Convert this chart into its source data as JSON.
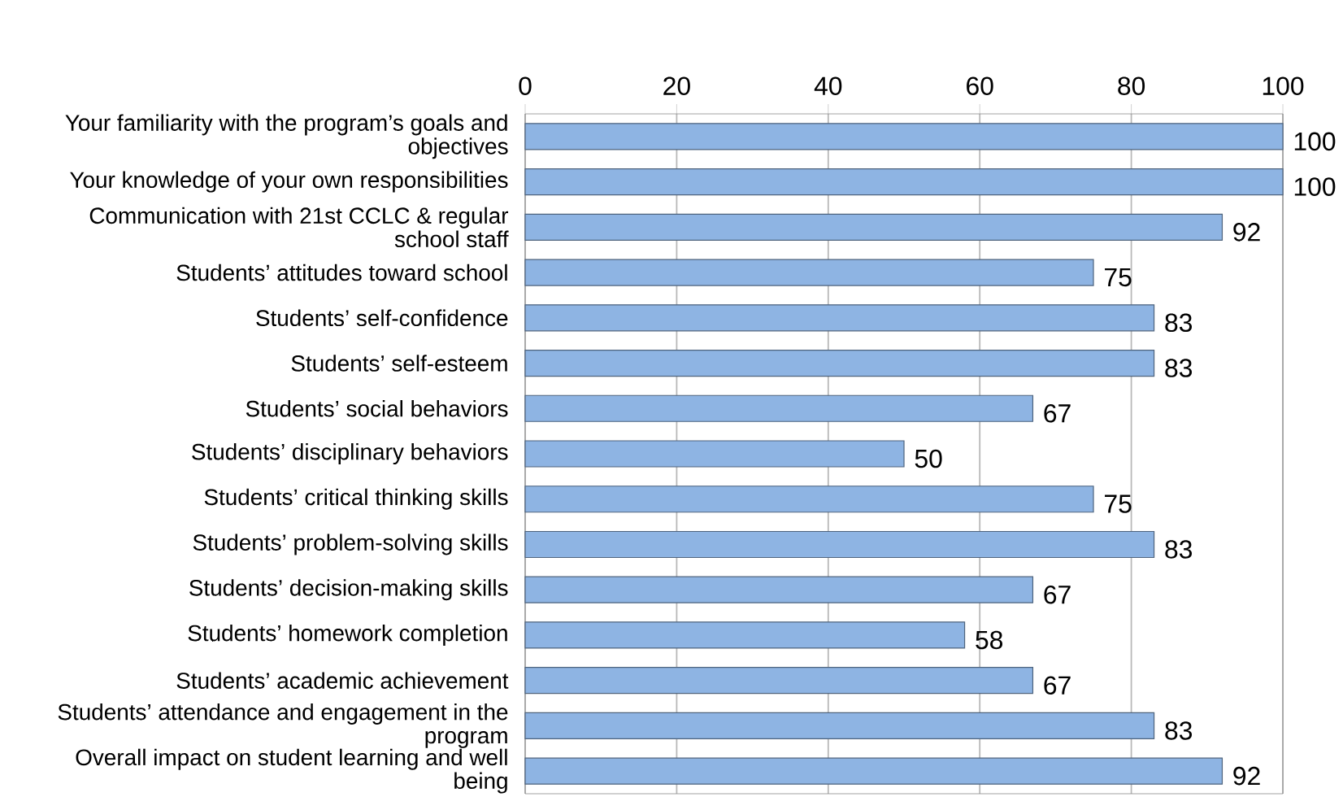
{
  "chart_data": {
    "type": "bar",
    "orientation": "horizontal",
    "categories": [
      "Your familiarity with the program’s goals and objectives",
      "Your knowledge of your own responsibilities",
      "Communication with 21st CCLC & regular school staff",
      "Students’ attitudes toward school",
      "Students’ self-confidence",
      "Students’ self-esteem",
      "Students’ social behaviors",
      "Students’ disciplinary behaviors",
      "Students’ critical thinking skills",
      "Students’ problem-solving skills",
      "Students’ decision-making skills",
      "Students’ homework completion",
      "Students’ academic achievement",
      "Students’ attendance and engagement in the program",
      "Overall impact on student learning and well being"
    ],
    "values": [
      100,
      100,
      92,
      75,
      83,
      83,
      67,
      50,
      75,
      83,
      67,
      58,
      67,
      83,
      92
    ],
    "color": "#8eb4e3",
    "xlim": [
      0,
      100
    ],
    "xticks": [
      0,
      20,
      40,
      60,
      80,
      100
    ],
    "grid": "x",
    "data_labels": true
  }
}
